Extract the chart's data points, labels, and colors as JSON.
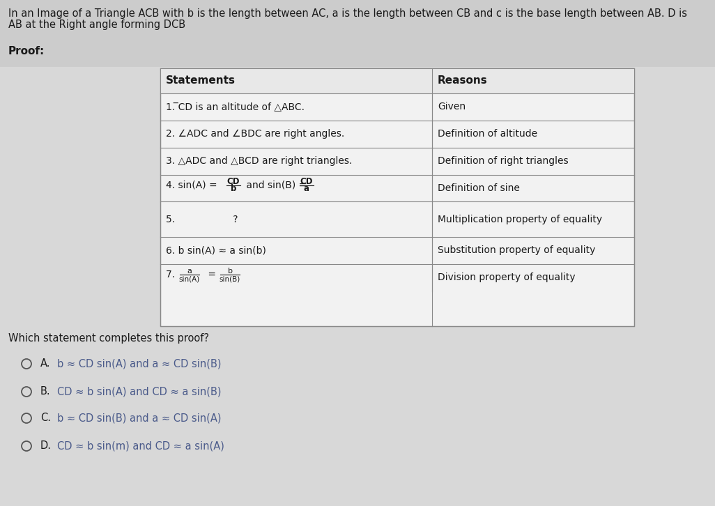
{
  "bg_color": "#d8d8d8",
  "table_bg": "#f0f0f0",
  "font_color": "#1a1a1a",
  "title_line1": "In an Image of a Triangle ACB with b is the length between AC, a is the length between CB and c is the base length between AB. D is",
  "title_line2": "AB at the Right angle forming DCB",
  "proof_label": "Proof:",
  "statements_header": "Statements",
  "reasons_header": "Reasons",
  "rows": [
    [
      "1. ̅CD is an altitude of △ABC.",
      "Given"
    ],
    [
      "2. ∠ADC and ∠BDC are right angles.",
      "Definition of altitude"
    ],
    [
      "3. △ADC and △BCD are right triangles.",
      "Definition of right triangles"
    ],
    [
      "4. sin(A) = CD/b  and sin(B) = CD/a",
      "Definition of sine"
    ],
    [
      "5.                   ?",
      "Multiplication property of equality"
    ],
    [
      "6. b sin(A) ≈ a sin(b)",
      "Substitution property of equality"
    ],
    [
      "7. a/sin(A)  =  b/sin(B)",
      "Division property of equality"
    ]
  ],
  "which_statement": "Which statement completes this proof?",
  "options": [
    {
      "label": "A.",
      "text": "b ≈ CD sin(A) and a ≈ CD sin(B)"
    },
    {
      "label": "B.",
      "text": "CD ≈ b sin(A) and CD ≈ a sin(B)"
    },
    {
      "label": "C.",
      "text": "b ≈ CD sin(B) and a ≈ CD sin(A)"
    },
    {
      "label": "D.",
      "text": "CD ≈ b sin(m) and CD ≈ a sin(A)"
    }
  ],
  "option_text_color": "#4a5a8a",
  "title_fontsize": 10.5,
  "proof_fontsize": 11,
  "header_fontsize": 11,
  "cell_fontsize": 10,
  "option_fontsize": 10.5
}
